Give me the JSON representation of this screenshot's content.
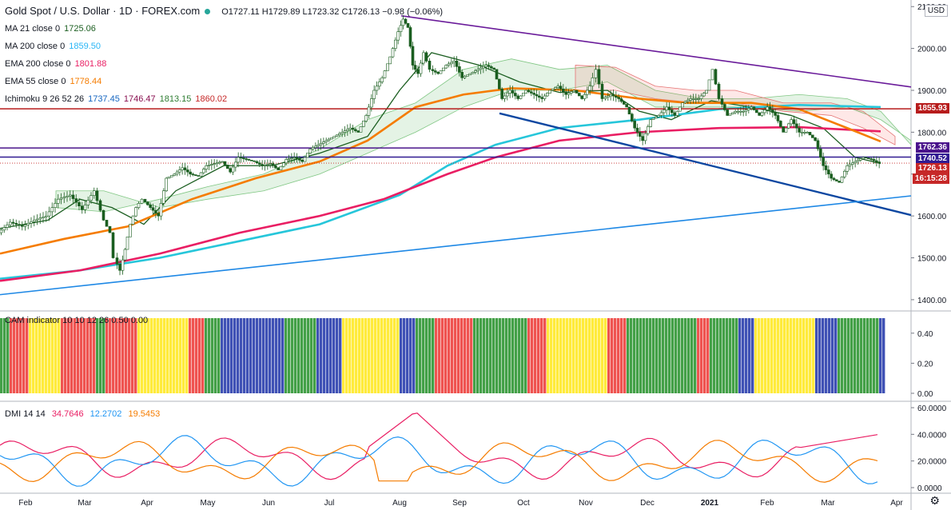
{
  "header": {
    "symbol": "Gold Spot / U.S. Dollar · 1D · FOREX.com",
    "ohlc": "O1727.11 H1729.89 L1723.32 C1726.13 −0.98 (−0.06%)",
    "currency": "USD"
  },
  "indicators": [
    {
      "label": "MA 21 close 0",
      "values": [
        "1725.06"
      ],
      "colors": [
        "#1b5e20"
      ]
    },
    {
      "label": "MA 200 close 0",
      "values": [
        "1859.50"
      ],
      "colors": [
        "#29b6f6"
      ]
    },
    {
      "label": "EMA 200 close 0",
      "values": [
        "1801.88"
      ],
      "colors": [
        "#e91e63"
      ]
    },
    {
      "label": "EMA 55 close 0",
      "values": [
        "1778.44"
      ],
      "colors": [
        "#f57c00"
      ]
    },
    {
      "label": "Ichimoku 9 26 52 26",
      "values": [
        "1737.45",
        "1746.47",
        "1813.15",
        "1860.02"
      ],
      "colors": [
        "#1565c0",
        "#880e4f",
        "#2e7d32",
        "#c62828"
      ]
    }
  ],
  "price_tags": [
    {
      "value": "1855.93",
      "color": "#b71c1c"
    },
    {
      "value": "1762.36",
      "color": "#4a148c"
    },
    {
      "value": "1740.52",
      "color": "#311b92"
    },
    {
      "value": "1726.13",
      "color": "#c62828"
    },
    {
      "value": "16:15:28",
      "color": "#c62828"
    }
  ],
  "cam": {
    "label": "CAM indicator 10 10 12 26 0.50 0.00",
    "ticks": [
      "0.40",
      "0.20",
      "0.00"
    ]
  },
  "dmi": {
    "label": "DMI 14 14",
    "values": [
      "34.7646",
      "12.2702",
      "19.5453"
    ],
    "colors": [
      "#e91e63",
      "#2196f3",
      "#f57c00"
    ],
    "ticks": [
      "60.0000",
      "40.0000",
      "20.0000",
      "0.0000"
    ]
  },
  "chart_data": {
    "type": "candlestick",
    "x_labels": [
      "Feb",
      "Mar",
      "Apr",
      "May",
      "Jun",
      "Jul",
      "Aug",
      "Sep",
      "Oct",
      "Nov",
      "Dec",
      "2021",
      "Feb",
      "Mar",
      "Apr"
    ],
    "price_ticks": [
      2100,
      2000,
      1900,
      1800,
      1700,
      1600,
      1500,
      1400
    ],
    "ylim": [
      1375,
      2110
    ],
    "price_path": [
      [
        0,
        1560
      ],
      [
        15,
        1585
      ],
      [
        30,
        1575
      ],
      [
        45,
        1590
      ],
      [
        60,
        1600
      ],
      [
        75,
        1640
      ],
      [
        90,
        1650
      ],
      [
        105,
        1615
      ],
      [
        120,
        1660
      ],
      [
        132,
        1590
      ],
      [
        140,
        1560
      ],
      [
        145,
        1500
      ],
      [
        152,
        1470
      ],
      [
        158,
        1520
      ],
      [
        165,
        1580
      ],
      [
        172,
        1620
      ],
      [
        180,
        1640
      ],
      [
        190,
        1620
      ],
      [
        200,
        1600
      ],
      [
        210,
        1690
      ],
      [
        220,
        1700
      ],
      [
        230,
        1715
      ],
      [
        240,
        1700
      ],
      [
        250,
        1695
      ],
      [
        260,
        1720
      ],
      [
        270,
        1725
      ],
      [
        280,
        1730
      ],
      [
        290,
        1705
      ],
      [
        300,
        1740
      ],
      [
        310,
        1735
      ],
      [
        320,
        1730
      ],
      [
        330,
        1720
      ],
      [
        340,
        1725
      ],
      [
        350,
        1710
      ],
      [
        360,
        1735
      ],
      [
        370,
        1740
      ],
      [
        380,
        1730
      ],
      [
        390,
        1760
      ],
      [
        400,
        1770
      ],
      [
        410,
        1780
      ],
      [
        420,
        1790
      ],
      [
        430,
        1800
      ],
      [
        440,
        1810
      ],
      [
        450,
        1800
      ],
      [
        460,
        1840
      ],
      [
        470,
        1900
      ],
      [
        480,
        1930
      ],
      [
        490,
        1980
      ],
      [
        500,
        2040
      ],
      [
        506,
        2070
      ],
      [
        512,
        2050
      ],
      [
        518,
        1960
      ],
      [
        525,
        1940
      ],
      [
        532,
        1990
      ],
      [
        540,
        1950
      ],
      [
        550,
        1940
      ],
      [
        560,
        1960
      ],
      [
        570,
        1970
      ],
      [
        580,
        1930
      ],
      [
        590,
        1940
      ],
      [
        600,
        1950
      ],
      [
        610,
        1960
      ],
      [
        620,
        1950
      ],
      [
        630,
        1880
      ],
      [
        640,
        1900
      ],
      [
        650,
        1880
      ],
      [
        660,
        1900
      ],
      [
        670,
        1890
      ],
      [
        680,
        1880
      ],
      [
        690,
        1900
      ],
      [
        700,
        1910
      ],
      [
        710,
        1890
      ],
      [
        720,
        1900
      ],
      [
        730,
        1880
      ],
      [
        740,
        1910
      ],
      [
        748,
        1950
      ],
      [
        756,
        1880
      ],
      [
        766,
        1890
      ],
      [
        776,
        1880
      ],
      [
        786,
        1860
      ],
      [
        796,
        1810
      ],
      [
        806,
        1780
      ],
      [
        816,
        1830
      ],
      [
        826,
        1840
      ],
      [
        836,
        1860
      ],
      [
        846,
        1840
      ],
      [
        856,
        1870
      ],
      [
        866,
        1880
      ],
      [
        876,
        1880
      ],
      [
        886,
        1900
      ],
      [
        894,
        1950
      ],
      [
        902,
        1880
      ],
      [
        912,
        1840
      ],
      [
        922,
        1850
      ],
      [
        932,
        1850
      ],
      [
        942,
        1860
      ],
      [
        952,
        1840
      ],
      [
        962,
        1860
      ],
      [
        972,
        1840
      ],
      [
        982,
        1800
      ],
      [
        992,
        1830
      ],
      [
        1002,
        1800
      ],
      [
        1012,
        1800
      ],
      [
        1022,
        1780
      ],
      [
        1032,
        1720
      ],
      [
        1042,
        1690
      ],
      [
        1052,
        1680
      ],
      [
        1062,
        1720
      ],
      [
        1072,
        1730
      ],
      [
        1082,
        1740
      ],
      [
        1092,
        1735
      ],
      [
        1102,
        1726
      ]
    ],
    "overlays": [
      {
        "name": "MA 21",
        "color": "#1b5e20",
        "points": [
          [
            0,
            1570
          ],
          [
            60,
            1590
          ],
          [
            100,
            1640
          ],
          [
            140,
            1620
          ],
          [
            180,
            1580
          ],
          [
            220,
            1660
          ],
          [
            280,
            1720
          ],
          [
            340,
            1720
          ],
          [
            400,
            1750
          ],
          [
            460,
            1790
          ],
          [
            500,
            1900
          ],
          [
            540,
            1990
          ],
          [
            600,
            1960
          ],
          [
            650,
            1920
          ],
          [
            700,
            1895
          ],
          [
            760,
            1900
          ],
          [
            800,
            1850
          ],
          [
            840,
            1830
          ],
          [
            890,
            1875
          ],
          [
            940,
            1860
          ],
          [
            990,
            1840
          ],
          [
            1030,
            1810
          ],
          [
            1070,
            1740
          ],
          [
            1102,
            1725
          ]
        ]
      },
      {
        "name": "MA 200",
        "color": "#26c6da",
        "points": [
          [
            0,
            1450
          ],
          [
            100,
            1470
          ],
          [
            200,
            1500
          ],
          [
            300,
            1540
          ],
          [
            400,
            1580
          ],
          [
            500,
            1650
          ],
          [
            560,
            1720
          ],
          [
            620,
            1770
          ],
          [
            700,
            1810
          ],
          [
            800,
            1830
          ],
          [
            900,
            1855
          ],
          [
            1000,
            1865
          ],
          [
            1102,
            1860
          ]
        ]
      },
      {
        "name": "EMA 200",
        "color": "#e91e63",
        "points": [
          [
            0,
            1445
          ],
          [
            100,
            1470
          ],
          [
            200,
            1510
          ],
          [
            300,
            1560
          ],
          [
            400,
            1600
          ],
          [
            480,
            1640
          ],
          [
            560,
            1700
          ],
          [
            620,
            1740
          ],
          [
            700,
            1780
          ],
          [
            800,
            1800
          ],
          [
            900,
            1810
          ],
          [
            1000,
            1812
          ],
          [
            1102,
            1802
          ]
        ]
      },
      {
        "name": "EMA 55",
        "color": "#f57c00",
        "points": [
          [
            0,
            1510
          ],
          [
            80,
            1545
          ],
          [
            160,
            1575
          ],
          [
            240,
            1640
          ],
          [
            320,
            1690
          ],
          [
            400,
            1730
          ],
          [
            460,
            1780
          ],
          [
            520,
            1860
          ],
          [
            580,
            1890
          ],
          [
            640,
            1905
          ],
          [
            720,
            1900
          ],
          [
            800,
            1880
          ],
          [
            860,
            1870
          ],
          [
            940,
            1870
          ],
          [
            1000,
            1855
          ],
          [
            1060,
            1810
          ],
          [
            1102,
            1778
          ]
        ]
      }
    ],
    "trendlines": [
      {
        "color": "#6a1b9a",
        "from": [
          502,
          2078
        ],
        "to": [
          1140,
          1908
        ]
      },
      {
        "color": "#0d47a1",
        "from": [
          625,
          1845
        ],
        "to": [
          1140,
          1602
        ]
      },
      {
        "color": "#1e88e5",
        "from": [
          0,
          1412
        ],
        "to": [
          1140,
          1648
        ]
      }
    ],
    "levels": [
      {
        "value": 1855.93,
        "color": "#b71c1c"
      },
      {
        "value": 1762.36,
        "color": "#4a148c"
      },
      {
        "value": 1740.52,
        "color": "#311b92"
      }
    ]
  }
}
